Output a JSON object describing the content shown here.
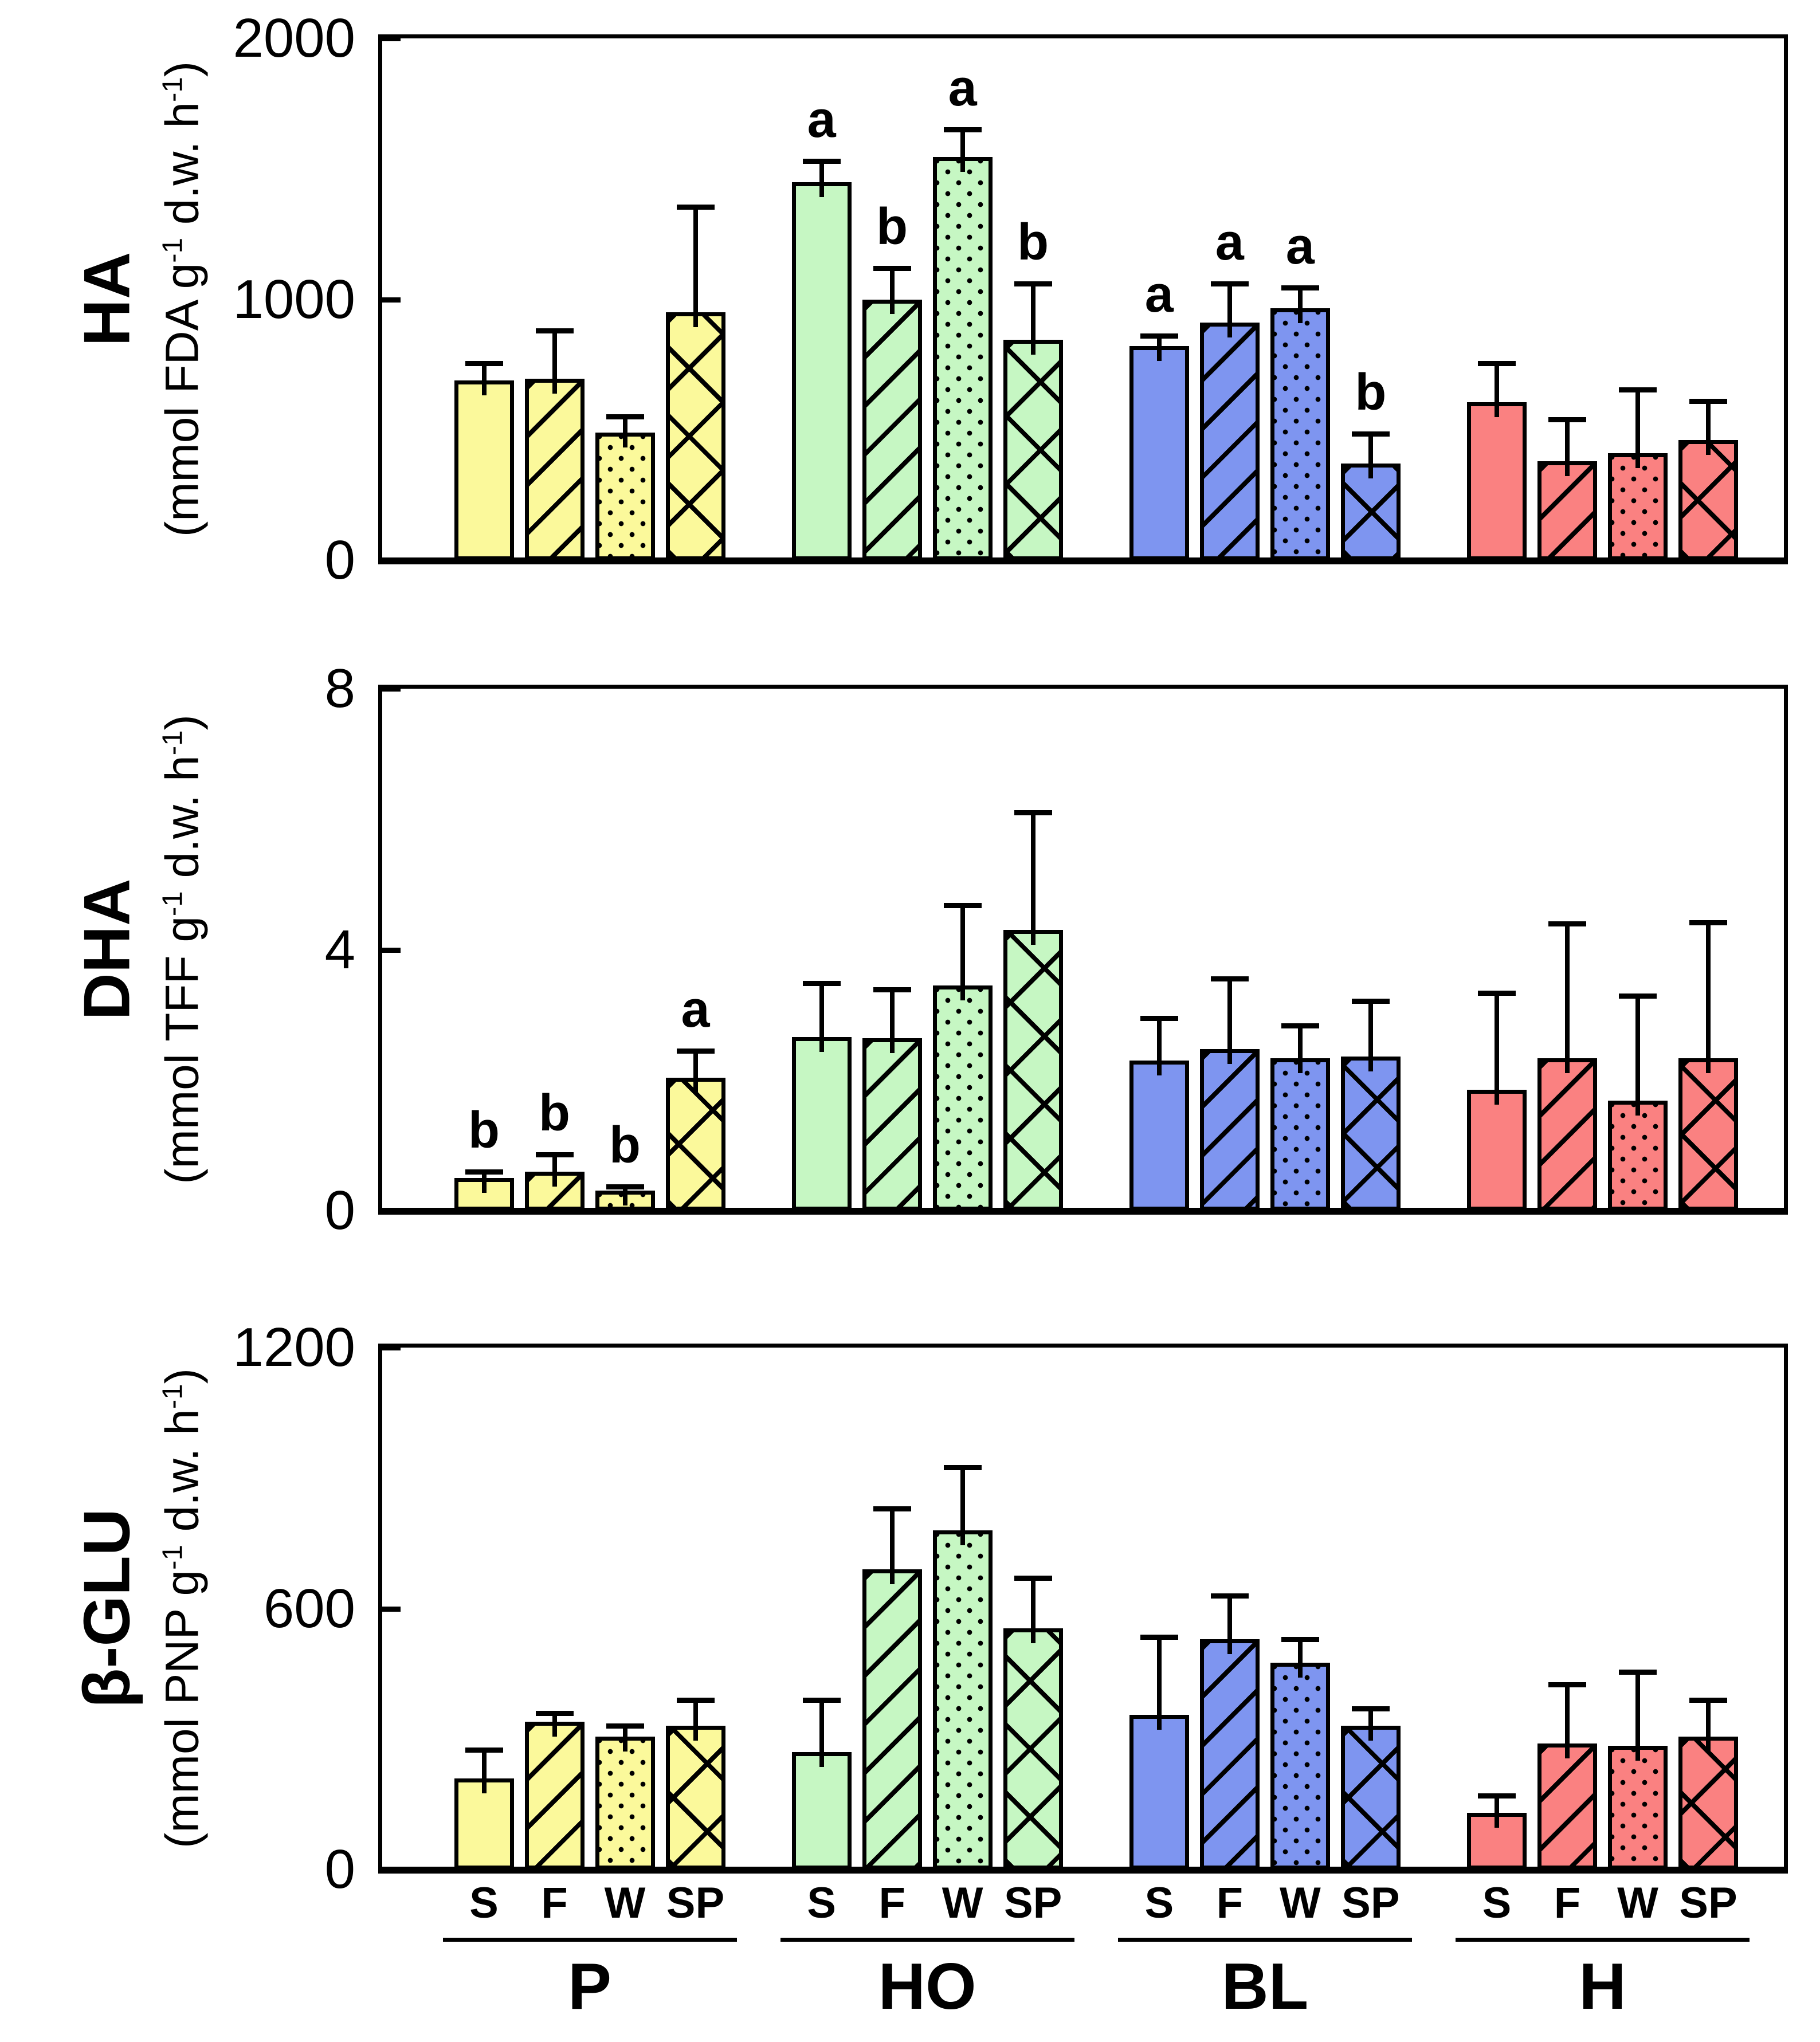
{
  "figure": {
    "background": "#FFFFFF",
    "groups": [
      "P",
      "HO",
      "BL",
      "H"
    ],
    "seasons": [
      "S",
      "F",
      "W",
      "SP"
    ],
    "season_patterns": {
      "S": "solid",
      "F": "diagonal",
      "W": "dots",
      "SP": "crosshatch"
    },
    "group_colors": {
      "P": "#FBF99B",
      "HO": "#C6F7C3",
      "BL": "#7E95F0",
      "H": "#FA8181"
    }
  },
  "chart_data": [
    {
      "type": "bar",
      "title": "HA",
      "unit": {
        "pre": "(mmol FDA g",
        "sup1": "-1",
        "mid": " d.w. h",
        "sup2": "-1",
        "post": ")"
      },
      "ylim": [
        0,
        2000
      ],
      "yticks": [
        "0",
        "1000",
        "2000"
      ],
      "categories": [
        "S",
        "F",
        "W",
        "SP"
      ],
      "legend": "none",
      "grid": "off",
      "groups": [
        {
          "name": "P",
          "values": [
            690,
            695,
            490,
            950
          ],
          "errors": [
            65,
            185,
            60,
            405
          ],
          "letters": [
            "",
            "",
            "",
            ""
          ]
        },
        {
          "name": "HO",
          "values": [
            1450,
            1000,
            1545,
            845
          ],
          "errors": [
            80,
            120,
            105,
            215
          ],
          "letters": [
            "a",
            "b",
            "a",
            "b"
          ]
        },
        {
          "name": "BL",
          "values": [
            820,
            910,
            965,
            370
          ],
          "errors": [
            40,
            150,
            80,
            115
          ],
          "letters": [
            "a",
            "a",
            "a",
            "b"
          ]
        },
        {
          "name": "H",
          "values": [
            605,
            380,
            410,
            460
          ],
          "errors": [
            150,
            160,
            245,
            150
          ],
          "letters": [
            "",
            "",
            "",
            ""
          ]
        }
      ]
    },
    {
      "type": "bar",
      "title": "DHA",
      "unit": {
        "pre": "(mmol TFF g",
        "sup1": "-1",
        "mid": " d.w. h",
        "sup2": "-1",
        "post": ")"
      },
      "ylim": [
        0,
        8
      ],
      "yticks": [
        "0",
        "4",
        "8"
      ],
      "categories": [
        "S",
        "F",
        "W",
        "SP"
      ],
      "legend": "none",
      "grid": "off",
      "groups": [
        {
          "name": "P",
          "values": [
            0.5,
            0.6,
            0.31,
            2.04
          ],
          "errors": [
            0.1,
            0.26,
            0.06,
            0.41
          ],
          "letters": [
            "b",
            "b",
            "b",
            "a"
          ]
        },
        {
          "name": "HO",
          "values": [
            2.66,
            2.64,
            3.45,
            4.3
          ],
          "errors": [
            0.83,
            0.75,
            1.23,
            1.8
          ],
          "letters": [
            "",
            "",
            "",
            ""
          ]
        },
        {
          "name": "BL",
          "values": [
            2.3,
            2.48,
            2.34,
            2.36
          ],
          "errors": [
            0.65,
            1.08,
            0.5,
            0.85
          ],
          "letters": [
            "",
            "",
            "",
            ""
          ]
        },
        {
          "name": "H",
          "values": [
            1.85,
            2.34,
            1.69,
            2.34
          ],
          "errors": [
            1.49,
            2.06,
            1.6,
            2.08
          ],
          "letters": [
            "",
            "",
            "",
            ""
          ]
        }
      ]
    },
    {
      "type": "bar",
      "title": "β-GLU",
      "unit": {
        "pre": "(mmol PNP g",
        "sup1": "-1",
        "mid": " d.w. h",
        "sup2": "-1",
        "post": ")"
      },
      "ylim": [
        0,
        1200
      ],
      "yticks": [
        "0",
        "600",
        "1200"
      ],
      "categories": [
        "S",
        "F",
        "W",
        "SP"
      ],
      "legend": "none",
      "grid": "off",
      "groups": [
        {
          "name": "P",
          "values": [
            210,
            340,
            305,
            330
          ],
          "errors": [
            65,
            20,
            25,
            60
          ],
          "letters": [
            "",
            "",
            "",
            ""
          ]
        },
        {
          "name": "HO",
          "values": [
            270,
            690,
            780,
            555
          ],
          "errors": [
            120,
            140,
            145,
            115
          ],
          "letters": [
            "",
            "",
            "",
            ""
          ]
        },
        {
          "name": "BL",
          "values": [
            355,
            530,
            475,
            330
          ],
          "errors": [
            180,
            100,
            55,
            40
          ],
          "letters": [
            "",
            "",
            "",
            ""
          ]
        },
        {
          "name": "H",
          "values": [
            130,
            290,
            285,
            305
          ],
          "errors": [
            40,
            135,
            170,
            85
          ],
          "letters": [
            "",
            "",
            "",
            ""
          ]
        }
      ]
    }
  ]
}
